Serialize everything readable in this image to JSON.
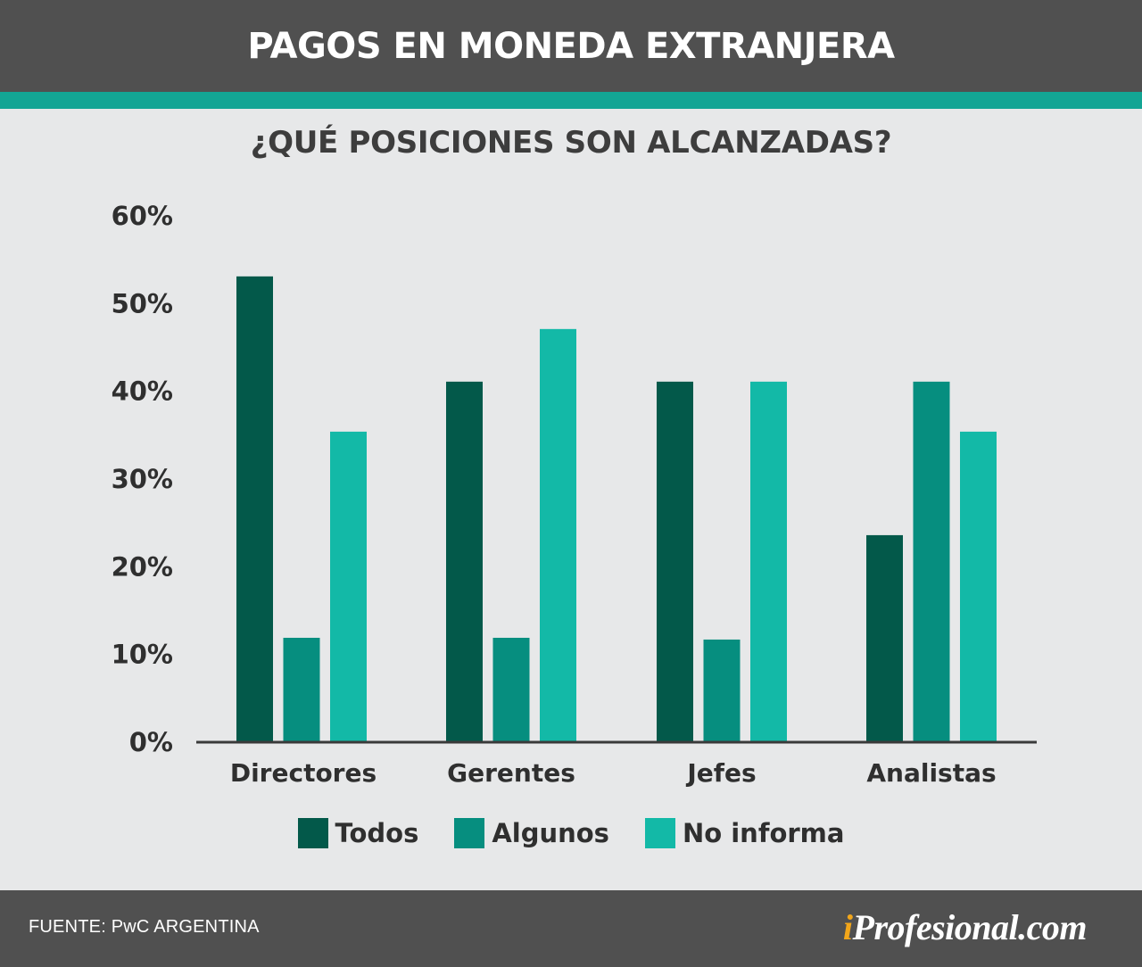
{
  "header": {
    "title": "PAGOS EN MONEDA EXTRANJERA"
  },
  "colors": {
    "header_bg": "#505050",
    "accent_band": "#13a594",
    "background": "#e7e8e9",
    "todos": "#03594a",
    "algunos": "#068e7f",
    "no_informa": "#13b9a7"
  },
  "chart_data": {
    "type": "bar",
    "title": "¿QUÉ POSICIONES SON ALCANZADAS?",
    "categories": [
      "Directores",
      "Gerentes",
      "Jefes",
      "Analistas"
    ],
    "series": [
      {
        "name": "Todos",
        "color": "#03594a",
        "values": [
          53,
          41,
          41,
          23.5
        ]
      },
      {
        "name": "Algunos",
        "color": "#068e7f",
        "values": [
          11.8,
          11.8,
          11.6,
          41
        ]
      },
      {
        "name": "No informa",
        "color": "#13b9a7",
        "values": [
          35.3,
          47,
          41,
          35.3
        ]
      }
    ],
    "yticks": [
      "0%",
      "10%",
      "20%",
      "30%",
      "40%",
      "50%",
      "60%"
    ],
    "ylim": [
      0,
      60
    ],
    "grid": false,
    "legend_position": "bottom-center"
  },
  "footer": {
    "source": "FUENTE: PwC ARGENTINA",
    "brand_i": "i",
    "brand_rest": "Profesional.com"
  }
}
